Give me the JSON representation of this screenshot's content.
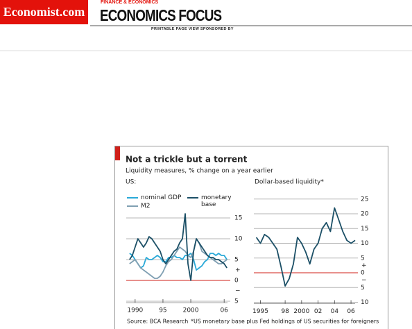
{
  "header": {
    "logo": "Economist.com",
    "section": "FINANCE & ECONOMICS",
    "title": "ECONOMICS FOCUS",
    "sponsor": "PRINTABLE PAGE VIEW SPONSORED BY"
  },
  "chart_data": [
    {
      "type": "line",
      "title": "Not a trickle but a torrent",
      "subtitle": "Liquidity measures, % change on a year earlier",
      "panel_title": "US:",
      "source": "Source: BCA Research",
      "sign_labels": [
        "+",
        "−"
      ],
      "x": [
        1989,
        1989.5,
        1990,
        1990.5,
        1991,
        1991.5,
        1992,
        1992.5,
        1993,
        1993.5,
        1994,
        1994.5,
        1995,
        1995.5,
        1996,
        1996.5,
        1997,
        1997.5,
        1998,
        1998.5,
        1999,
        1999.5,
        2000,
        2000.5,
        2001,
        2001.5,
        2002,
        2002.5,
        2003,
        2003.5,
        2004,
        2004.5,
        2005,
        2005.5,
        2006,
        2006.5
      ],
      "series": [
        {
          "name": "nominal GDP",
          "color": "#29a9d8",
          "values": [
            6.5,
            6,
            5,
            4,
            3,
            3.5,
            5.5,
            5,
            5,
            5.5,
            6,
            5.5,
            4.5,
            4.5,
            5.5,
            5.5,
            6,
            5.5,
            5.5,
            5,
            6,
            6,
            6.5,
            5,
            2.5,
            3,
            3.5,
            4.5,
            5,
            6.5,
            6.5,
            6,
            6.5,
            6,
            6,
            5
          ]
        },
        {
          "name": "M2",
          "color": "#7f9fb2",
          "values": [
            4,
            4.5,
            5,
            4,
            3,
            2.5,
            2,
            1.5,
            1,
            0.5,
            0.5,
            1,
            2,
            3.5,
            4.5,
            5,
            6,
            7,
            8,
            7.5,
            7,
            6,
            5.5,
            7,
            10,
            9,
            7,
            6.5,
            6,
            5.5,
            5,
            4.5,
            4,
            4,
            4.5,
            5
          ]
        },
        {
          "name": "monetary base",
          "color": "#1b4f66",
          "values": [
            5,
            6,
            8,
            10,
            9,
            8,
            9,
            10.5,
            10,
            9,
            8,
            7,
            5,
            4,
            5,
            6,
            7,
            7.5,
            9,
            10,
            16,
            4,
            0,
            7,
            10,
            9,
            8,
            7,
            6,
            5.5,
            5.5,
            5,
            5,
            4.5,
            4,
            3
          ]
        }
      ],
      "xlim": [
        1988.4,
        2006.6
      ],
      "xticks": [
        1990,
        {
          "value": 1995,
          "label": "95"
        },
        2000,
        {
          "value": 2006,
          "label": "06"
        }
      ],
      "ylim": [
        -5,
        16.5
      ],
      "yticks": [
        {
          "value": -5,
          "label": "5"
        },
        0,
        5,
        10,
        15
      ],
      "grid": true,
      "grid_color": "#b5b5b5",
      "zero_color": "#d0201a"
    },
    {
      "type": "line",
      "panel_title": "Dollar-based liquidity*",
      "note": "*US monetary base plus Fed holdings of US securities for foreigners",
      "sign_labels": [
        "+",
        "−"
      ],
      "x": [
        1994.5,
        1995,
        1995.5,
        1996,
        1996.5,
        1997,
        1997.5,
        1998,
        1998.5,
        1999,
        1999.5,
        2000,
        2000.5,
        2001,
        2001.5,
        2002,
        2002.5,
        2003,
        2003.5,
        2004,
        2004.5,
        2005,
        2005.5,
        2006,
        2006.5
      ],
      "values": [
        12,
        10,
        13,
        12,
        10,
        8,
        2,
        -4.5,
        -2,
        3,
        12,
        10,
        7,
        3,
        8,
        10,
        15,
        17,
        14,
        22,
        18,
        14,
        11,
        10,
        11
      ],
      "color": "#1b4f66",
      "xlim": [
        1994.2,
        2006.5
      ],
      "xticks": [
        1995,
        {
          "value": 1998,
          "label": "98"
        },
        2000,
        {
          "value": 2002,
          "label": "02"
        },
        {
          "value": 2004,
          "label": "04"
        },
        {
          "value": 2006,
          "label": "06"
        }
      ],
      "ylim": [
        -10,
        26
      ],
      "yticks": [
        {
          "value": -10,
          "label": "10"
        },
        {
          "value": -5,
          "label": "5"
        },
        0,
        5,
        10,
        15,
        20,
        25
      ],
      "grid": true,
      "grid_color": "#b5b5b5",
      "zero_color": "#d0201a"
    }
  ]
}
